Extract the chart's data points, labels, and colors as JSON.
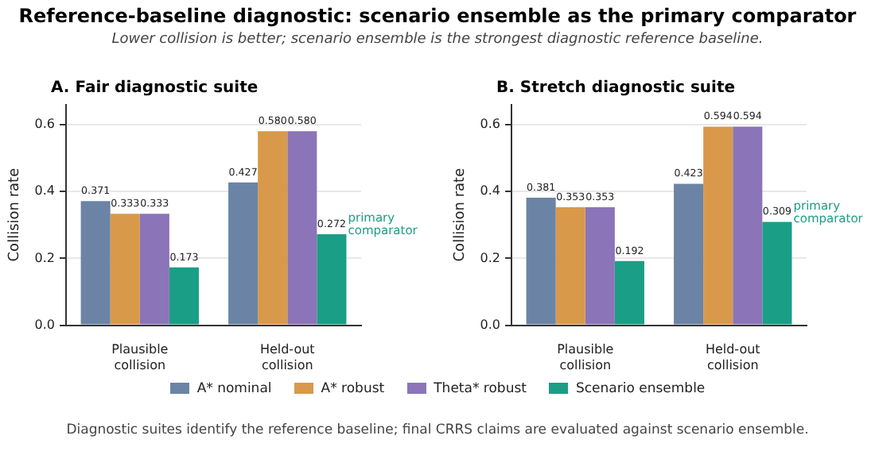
{
  "chart_data": [
    {
      "type": "other",
      "title": "Reference-baseline diagnostic: scenario ensemble as the primary comparator",
      "subtitle": "Lower collision is better; scenario ensemble is the strongest diagnostic reference baseline.",
      "annotations": [
        "Diagnostic suites identify the reference baseline; final CRRS claims are evaluated against scenario ensemble."
      ]
    },
    {
      "type": "bar",
      "title": "A. Fair diagnostic suite",
      "ylabel": "Collision rate",
      "categories": [
        "Plausible collision",
        "Held-out collision"
      ],
      "series": [
        {
          "name": "A* nominal",
          "color": "#6b84a6",
          "values": [
            0.371,
            0.427
          ],
          "value_labels": [
            "0.371",
            "0.427"
          ]
        },
        {
          "name": "A* robust",
          "color": "#d9994a",
          "values": [
            0.333,
            0.58
          ],
          "value_labels": [
            "0.333",
            "0.580"
          ]
        },
        {
          "name": "Theta* robust",
          "color": "#8b74b8",
          "values": [
            0.333,
            0.58
          ],
          "value_labels": [
            "0.333",
            "0.580"
          ]
        },
        {
          "name": "Scenario ensemble",
          "color": "#1a9e86",
          "values": [
            0.173,
            0.272
          ],
          "value_labels": [
            "0.173",
            "0.272"
          ]
        }
      ],
      "ylim": [
        0,
        0.66
      ],
      "yticks": [
        {
          "value": 0,
          "label": "0.0"
        },
        0.2,
        0.4,
        0.6
      ],
      "grid": "y",
      "legend": "bottom",
      "annotations": [
        "primary comparator"
      ]
    },
    {
      "type": "bar",
      "title": "B. Stretch diagnostic suite",
      "ylabel": "Collision rate",
      "categories": [
        "Plausible collision",
        "Held-out collision"
      ],
      "series": [
        {
          "color": "#6b84a6",
          "values": [
            0.381,
            0.423
          ],
          "value_labels": [
            "0.381",
            "0.423"
          ]
        },
        {
          "color": "#d9994a",
          "values": [
            0.353,
            0.594
          ],
          "value_labels": [
            "0.353",
            "0.594"
          ]
        },
        {
          "color": "#8b74b8",
          "values": [
            0.353,
            0.594
          ],
          "value_labels": [
            "0.353",
            "0.594"
          ]
        },
        {
          "color": "#1a9e86",
          "values": [
            0.192,
            0.309
          ],
          "value_labels": [
            "0.192",
            "0.309"
          ]
        }
      ],
      "ylim": [
        0,
        0.66
      ],
      "yticks": [
        {
          "value": 0,
          "label": "0.0"
        },
        0.2,
        0.4,
        0.6
      ],
      "grid": "y",
      "annotations": [
        "primary comparator"
      ]
    }
  ]
}
